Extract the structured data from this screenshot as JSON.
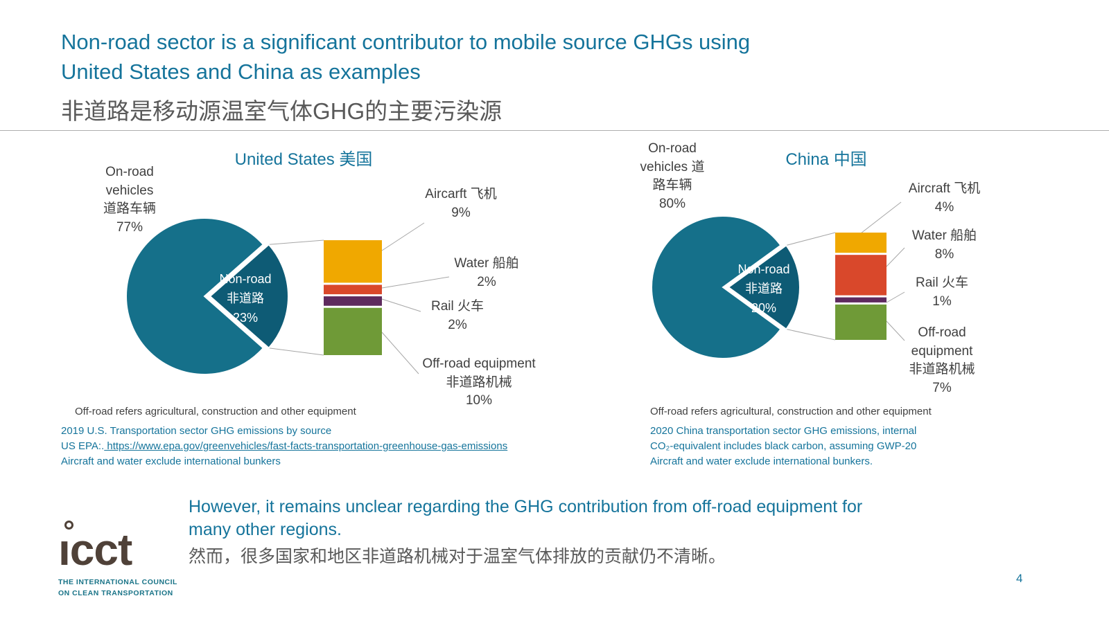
{
  "header": {
    "title_en": "Non-road sector is a significant contributor to mobile source GHGs using\nUnited States and China as examples",
    "title_zh": "非道路是移动源温室气体GHG的主要污染源"
  },
  "chart_data": [
    {
      "id": "us",
      "type": "pie",
      "title": "United States 美国",
      "slices": [
        {
          "name": "On-road vehicles 道路车辆",
          "value": 77,
          "color": "#15708A",
          "label": "On-road\nvehicles\n道路车辆\n77%"
        },
        {
          "name": "Non-road 非道路",
          "value": 23,
          "color": "#0E5B75",
          "label": "Non-road\n非道路\n23%"
        }
      ],
      "breakdown": [
        {
          "name": "Aircarft 飞机",
          "value": 9,
          "color": "#F0A800",
          "label": "Aircarft 飞机\n9%"
        },
        {
          "name": "Water 船舶",
          "value": 2,
          "color": "#D9482B",
          "label": "Water 船舶\n2%"
        },
        {
          "name": "Rail 火车",
          "value": 2,
          "color": "#5E2A5E",
          "label": "Rail 火车\n2%"
        },
        {
          "name": "Off-road equipment 非道路机械",
          "value": 10,
          "color": "#6F9A37",
          "label": "Off-road equipment\n非道路机械\n10%"
        }
      ],
      "footnote": "Off-road refers agricultural, construction and other equipment",
      "source_line1": "2019 U.S. Transportation sector GHG emissions by source",
      "source_prefix": "US EPA:.",
      "source_link": " https://www.epa.gov/greenvehicles/fast-facts-transportation-greenhouse-gas-emissions",
      "source_line3": "Aircraft and water exclude international bunkers"
    },
    {
      "id": "china",
      "type": "pie",
      "title": "China 中国",
      "slices": [
        {
          "name": "On-road vehicles 道路车辆",
          "value": 80,
          "color": "#15708A",
          "label": "On-road\nvehicles 道\n路车辆\n80%"
        },
        {
          "name": "Non-road 非道路",
          "value": 20,
          "color": "#0E5B75",
          "label": "Non-road\n非道路\n20%"
        }
      ],
      "breakdown": [
        {
          "name": "Aircraft 飞机",
          "value": 4,
          "color": "#F0A800",
          "label": "Aircraft 飞机\n4%"
        },
        {
          "name": "Water 船舶",
          "value": 8,
          "color": "#D9482B",
          "label": "Water 船舶\n8%"
        },
        {
          "name": "Rail 火车",
          "value": 1,
          "color": "#5E2A5E",
          "label": "Rail 火车\n1%"
        },
        {
          "name": "Off-road equipment 非道路机械",
          "value": 7,
          "color": "#6F9A37",
          "label": "Off-road\nequipment\n非道路机械\n7%"
        }
      ],
      "footnote": "Off-road refers agricultural, construction and other equipment",
      "source_line1": "2020 China transportation sector GHG emissions, internal",
      "source_line2": "CO₂-equivalent includes black carbon, assuming GWP-20",
      "source_line3": "Aircraft and water exclude international bunkers."
    }
  ],
  "bottom": {
    "statement_en": "However, it remains unclear regarding the GHG contribution from off-road equipment for\nmany other regions.",
    "statement_zh": "然而，很多国家和地区非道路机械对于温室气体排放的贡献仍不清晰。",
    "page_number": "4"
  },
  "logo": {
    "wordmark": "ıcct",
    "tagline_line1": "THE INTERNATIONAL COUNCIL",
    "tagline_line2": "ON CLEAN TRANSPORTATION"
  }
}
